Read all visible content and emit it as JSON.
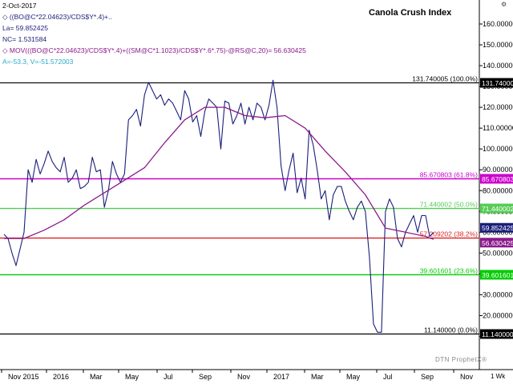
{
  "header": {
    "date": "2-Oct-2017",
    "formula": "((BO@C*22.04623)/CDS$Y*.4)+..",
    "last": "La= 59.852425",
    "net_change": "NC= 1.531584",
    "moving_average": "MOV(((BO@C*22.04623)/CDS$Y*.4)+((SM@C*1.1023)/CDS$Y*.6*.75)-@RS@C,20)= 56.630425",
    "stats": "A=-53.3, V=-51.572003",
    "settings_icon": "gear-icon"
  },
  "watermark": "DTN ProphetX®",
  "corner_label": "1 Wk",
  "colors": {
    "price": "#1a1f7a",
    "ma": "#8a1a8a",
    "fib_top": "#000000",
    "fib_618": "#cc00cc",
    "fib_500": "#55cc55",
    "fib_382": "#dd2222",
    "fib_236": "#00cc00",
    "fib_bottom": "#000000"
  },
  "chart_data": {
    "type": "line",
    "title": "Canola Crush Index",
    "y_ticks": [
      "160.000000",
      "150.000000",
      "140.000000",
      "130.000000",
      "120.000000",
      "110.000000",
      "100.000000",
      "90.000000",
      "80.000000",
      "70.000000",
      "60.000000",
      "50.000000",
      "40.000000",
      "30.000000",
      "20.000000",
      "10.000000"
    ],
    "ylim": [
      5,
      168
    ],
    "x_ticks": [
      "Nov 2015",
      "2016",
      "Mar",
      "May",
      "Jul",
      "Sep",
      "Nov",
      "2017",
      "Mar",
      "May",
      "Jul",
      "Sep",
      "Nov"
    ],
    "fib_levels": [
      {
        "value": 131.740005,
        "label": "131.740005 (100.0%)",
        "tag": "131.740005",
        "color_key": "fib_top"
      },
      {
        "value": 85.670803,
        "label": "85.670803 (61.8%)",
        "tag": "85.670803",
        "color_key": "fib_618"
      },
      {
        "value": 71.440002,
        "label": "71.440002 (50.0%)",
        "tag": "71.440002",
        "color_key": "fib_500"
      },
      {
        "value": 57.209202,
        "label": "57.209202 (38.2%)",
        "tag": "",
        "color_key": "fib_382"
      },
      {
        "value": 39.601601,
        "label": "39.601601 (23.6%)",
        "tag": "39.601601",
        "color_key": "fib_236"
      },
      {
        "value": 11.14,
        "label": "11.140000 (0.0%)",
        "tag": "11.140000",
        "color_key": "fib_bottom"
      }
    ],
    "last_value_tag": "59.852425",
    "ma_value_tag": "56.630425",
    "series": [
      {
        "color_key": "price",
        "values": [
          [
            0,
            59
          ],
          [
            1,
            57
          ],
          [
            2,
            50
          ],
          [
            3,
            44
          ],
          [
            4,
            52
          ],
          [
            5,
            60
          ],
          [
            6,
            90
          ],
          [
            7,
            84
          ],
          [
            8,
            95
          ],
          [
            9,
            88
          ],
          [
            10,
            93
          ],
          [
            11,
            99
          ],
          [
            12,
            94
          ],
          [
            13,
            91
          ],
          [
            14,
            89
          ],
          [
            15,
            96
          ],
          [
            16,
            84
          ],
          [
            17,
            86
          ],
          [
            18,
            90
          ],
          [
            19,
            81
          ],
          [
            20,
            82
          ],
          [
            21,
            84
          ],
          [
            22,
            96
          ],
          [
            23,
            89
          ],
          [
            24,
            90
          ],
          [
            25,
            72
          ],
          [
            26,
            80
          ],
          [
            27,
            94
          ],
          [
            28,
            88
          ],
          [
            29,
            84
          ],
          [
            30,
            88
          ],
          [
            31,
            114
          ],
          [
            32,
            116
          ],
          [
            33,
            119
          ],
          [
            34,
            111
          ],
          [
            35,
            126
          ],
          [
            36,
            132
          ],
          [
            37,
            128
          ],
          [
            38,
            124
          ],
          [
            39,
            126
          ],
          [
            40,
            121
          ],
          [
            41,
            124
          ],
          [
            42,
            122
          ],
          [
            43,
            118
          ],
          [
            44,
            114
          ],
          [
            45,
            128
          ],
          [
            46,
            124
          ],
          [
            47,
            113
          ],
          [
            48,
            116
          ],
          [
            49,
            106
          ],
          [
            50,
            118
          ],
          [
            51,
            124
          ],
          [
            52,
            122
          ],
          [
            53,
            120
          ],
          [
            54,
            100
          ],
          [
            55,
            123
          ],
          [
            56,
            122
          ],
          [
            57,
            112
          ],
          [
            58,
            116
          ],
          [
            59,
            122
          ],
          [
            60,
            112
          ],
          [
            61,
            120
          ],
          [
            62,
            114
          ],
          [
            63,
            122
          ],
          [
            64,
            120
          ],
          [
            65,
            114
          ],
          [
            66,
            121
          ],
          [
            67,
            133
          ],
          [
            68,
            120
          ],
          [
            69,
            92
          ],
          [
            70,
            80
          ],
          [
            71,
            90
          ],
          [
            72,
            98
          ],
          [
            73,
            79
          ],
          [
            74,
            86
          ],
          [
            75,
            76
          ],
          [
            76,
            109
          ],
          [
            77,
            102
          ],
          [
            78,
            90
          ],
          [
            79,
            76
          ],
          [
            80,
            80
          ],
          [
            81,
            66
          ],
          [
            82,
            78
          ],
          [
            83,
            82
          ],
          [
            84,
            82
          ],
          [
            85,
            75
          ],
          [
            86,
            70
          ],
          [
            87,
            66
          ],
          [
            88,
            72
          ],
          [
            89,
            75
          ],
          [
            90,
            70
          ],
          [
            91,
            48
          ],
          [
            92,
            16
          ],
          [
            93,
            12
          ],
          [
            94,
            12
          ],
          [
            95,
            70
          ],
          [
            96,
            76
          ],
          [
            97,
            72
          ],
          [
            98,
            57
          ],
          [
            99,
            53
          ],
          [
            100,
            60
          ],
          [
            101,
            64
          ],
          [
            102,
            68
          ],
          [
            103,
            60
          ],
          [
            104,
            68
          ],
          [
            105,
            68
          ],
          [
            106,
            58
          ],
          [
            107,
            59.85
          ]
        ]
      },
      {
        "color_key": "ma",
        "values": [
          [
            0,
            57
          ],
          [
            5,
            57
          ],
          [
            10,
            61
          ],
          [
            15,
            66
          ],
          [
            20,
            73
          ],
          [
            25,
            79
          ],
          [
            30,
            85
          ],
          [
            35,
            91
          ],
          [
            40,
            103
          ],
          [
            45,
            114
          ],
          [
            50,
            120
          ],
          [
            55,
            120
          ],
          [
            60,
            116
          ],
          [
            65,
            115
          ],
          [
            70,
            116
          ],
          [
            75,
            110
          ],
          [
            80,
            99
          ],
          [
            85,
            89
          ],
          [
            90,
            78
          ],
          [
            95,
            62
          ],
          [
            100,
            60
          ],
          [
            105,
            58
          ],
          [
            107,
            56.6
          ]
        ]
      }
    ]
  }
}
